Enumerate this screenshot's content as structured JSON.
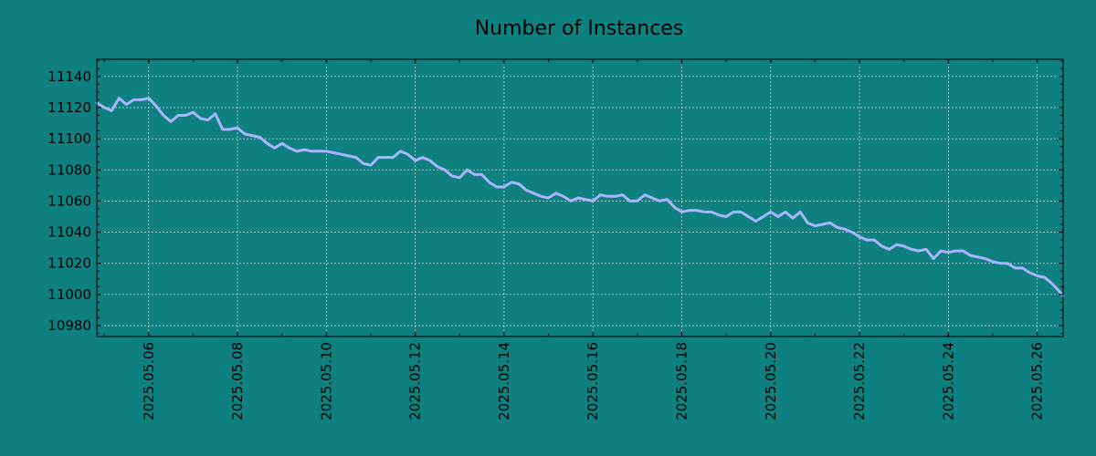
{
  "chart_data": {
    "type": "line",
    "title": "Number of Instances",
    "xlabel": "",
    "ylabel": "",
    "grid": true,
    "legend": "none",
    "colors": {
      "background": "#0f8080",
      "line": "#a9b4ff",
      "grid": "#e8e8e8"
    },
    "xlim": [
      "2025-05-04 20:00",
      "2025-05-26 14:00"
    ],
    "ylim": [
      10973,
      11151
    ],
    "yticks": [
      10980,
      11000,
      11020,
      11040,
      11060,
      11080,
      11100,
      11120,
      11140
    ],
    "xticks": [
      "2025.05.06",
      "2025.05.08",
      "2025.05.10",
      "2025.05.12",
      "2025.05.14",
      "2025.05.16",
      "2025.05.18",
      "2025.05.20",
      "2025.05.22",
      "2025.05.24",
      "2025.05.26"
    ],
    "series": [
      {
        "x": [
          "2025-05-04 20:00",
          "2025-05-05 00:00",
          "2025-05-05 04:00",
          "2025-05-05 08:00",
          "2025-05-05 12:00",
          "2025-05-05 16:00",
          "2025-05-05 20:00",
          "2025-05-06 00:00",
          "2025-05-06 04:00",
          "2025-05-06 08:00",
          "2025-05-06 12:00",
          "2025-05-06 16:00",
          "2025-05-06 20:00",
          "2025-05-07 00:00",
          "2025-05-07 04:00",
          "2025-05-07 08:00",
          "2025-05-07 12:00",
          "2025-05-07 16:00",
          "2025-05-07 20:00",
          "2025-05-08 00:00",
          "2025-05-08 04:00",
          "2025-05-08 08:00",
          "2025-05-08 12:00",
          "2025-05-08 16:00",
          "2025-05-08 20:00",
          "2025-05-09 00:00",
          "2025-05-09 04:00",
          "2025-05-09 08:00",
          "2025-05-09 12:00",
          "2025-05-09 16:00",
          "2025-05-09 20:00",
          "2025-05-10 00:00",
          "2025-05-10 04:00",
          "2025-05-10 08:00",
          "2025-05-10 12:00",
          "2025-05-10 16:00",
          "2025-05-10 20:00",
          "2025-05-11 00:00",
          "2025-05-11 04:00",
          "2025-05-11 08:00",
          "2025-05-11 12:00",
          "2025-05-11 16:00",
          "2025-05-11 20:00",
          "2025-05-12 00:00",
          "2025-05-12 04:00",
          "2025-05-12 08:00",
          "2025-05-12 12:00",
          "2025-05-12 16:00",
          "2025-05-12 20:00",
          "2025-05-13 00:00",
          "2025-05-13 04:00",
          "2025-05-13 08:00",
          "2025-05-13 12:00",
          "2025-05-13 16:00",
          "2025-05-13 20:00",
          "2025-05-14 00:00",
          "2025-05-14 04:00",
          "2025-05-14 08:00",
          "2025-05-14 12:00",
          "2025-05-14 16:00",
          "2025-05-14 20:00",
          "2025-05-15 00:00",
          "2025-05-15 04:00",
          "2025-05-15 08:00",
          "2025-05-15 12:00",
          "2025-05-15 16:00",
          "2025-05-15 20:00",
          "2025-05-16 00:00",
          "2025-05-16 04:00",
          "2025-05-16 08:00",
          "2025-05-16 12:00",
          "2025-05-16 16:00",
          "2025-05-16 20:00",
          "2025-05-17 00:00",
          "2025-05-17 04:00",
          "2025-05-17 08:00",
          "2025-05-17 12:00",
          "2025-05-17 16:00",
          "2025-05-17 20:00",
          "2025-05-18 00:00",
          "2025-05-18 04:00",
          "2025-05-18 08:00",
          "2025-05-18 12:00",
          "2025-05-18 16:00",
          "2025-05-18 20:00",
          "2025-05-19 00:00",
          "2025-05-19 04:00",
          "2025-05-19 08:00",
          "2025-05-19 12:00",
          "2025-05-19 16:00",
          "2025-05-19 20:00",
          "2025-05-20 00:00",
          "2025-05-20 04:00",
          "2025-05-20 08:00",
          "2025-05-20 12:00",
          "2025-05-20 16:00",
          "2025-05-20 20:00",
          "2025-05-21 00:00",
          "2025-05-21 04:00",
          "2025-05-21 08:00",
          "2025-05-21 12:00",
          "2025-05-21 16:00",
          "2025-05-21 20:00",
          "2025-05-22 00:00",
          "2025-05-22 04:00",
          "2025-05-22 08:00",
          "2025-05-22 12:00",
          "2025-05-22 16:00",
          "2025-05-22 20:00",
          "2025-05-23 00:00",
          "2025-05-23 04:00",
          "2025-05-23 08:00",
          "2025-05-23 12:00",
          "2025-05-23 16:00",
          "2025-05-23 20:00",
          "2025-05-24 00:00",
          "2025-05-24 04:00",
          "2025-05-24 08:00",
          "2025-05-24 12:00",
          "2025-05-24 16:00",
          "2025-05-24 20:00",
          "2025-05-25 00:00",
          "2025-05-25 04:00",
          "2025-05-25 08:00",
          "2025-05-25 12:00",
          "2025-05-25 16:00",
          "2025-05-25 20:00",
          "2025-05-26 00:00",
          "2025-05-26 04:00",
          "2025-05-26 08:00",
          "2025-05-26 12:00",
          "2025-05-26 14:00"
        ],
        "values": [
          11123,
          11120,
          11118,
          11126,
          11122,
          11125,
          11125,
          11126,
          11121,
          11115,
          11111,
          11115,
          11115,
          11117,
          11113,
          11112,
          11116,
          11106,
          11106,
          11107,
          11103,
          11102,
          11101,
          11097,
          11094,
          11097,
          11094,
          11092,
          11093,
          11092,
          11092,
          11092,
          11091,
          11090,
          11089,
          11088,
          11084,
          11083,
          11088,
          11088,
          11088,
          11092,
          11090,
          11086,
          11088,
          11086,
          11082,
          11080,
          11076,
          11075,
          11080,
          11077,
          11077,
          11072,
          11069,
          11069,
          11072,
          11071,
          11067,
          11065,
          11063,
          11062,
          11065,
          11063,
          11060,
          11062,
          11061,
          11060,
          11064,
          11063,
          11063,
          11064,
          11060,
          11060,
          11064,
          11062,
          11060,
          11061,
          11056,
          11053,
          11054,
          11054,
          11053,
          11053,
          11051,
          11050,
          11053,
          11053,
          11050,
          11047,
          11050,
          11053,
          11050,
          11053,
          11049,
          11053,
          11046,
          11044,
          11045,
          11046,
          11043,
          11042,
          11040,
          11037,
          11035,
          11035,
          11031,
          11029,
          11032,
          11031,
          11029,
          11028,
          11029,
          11023,
          11028,
          11027,
          11028,
          11028,
          11025,
          11024,
          11023,
          11021,
          11020,
          11020,
          11017,
          11017,
          11014,
          11012,
          11011,
          11007,
          11002,
          10999
        ]
      }
    ]
  }
}
